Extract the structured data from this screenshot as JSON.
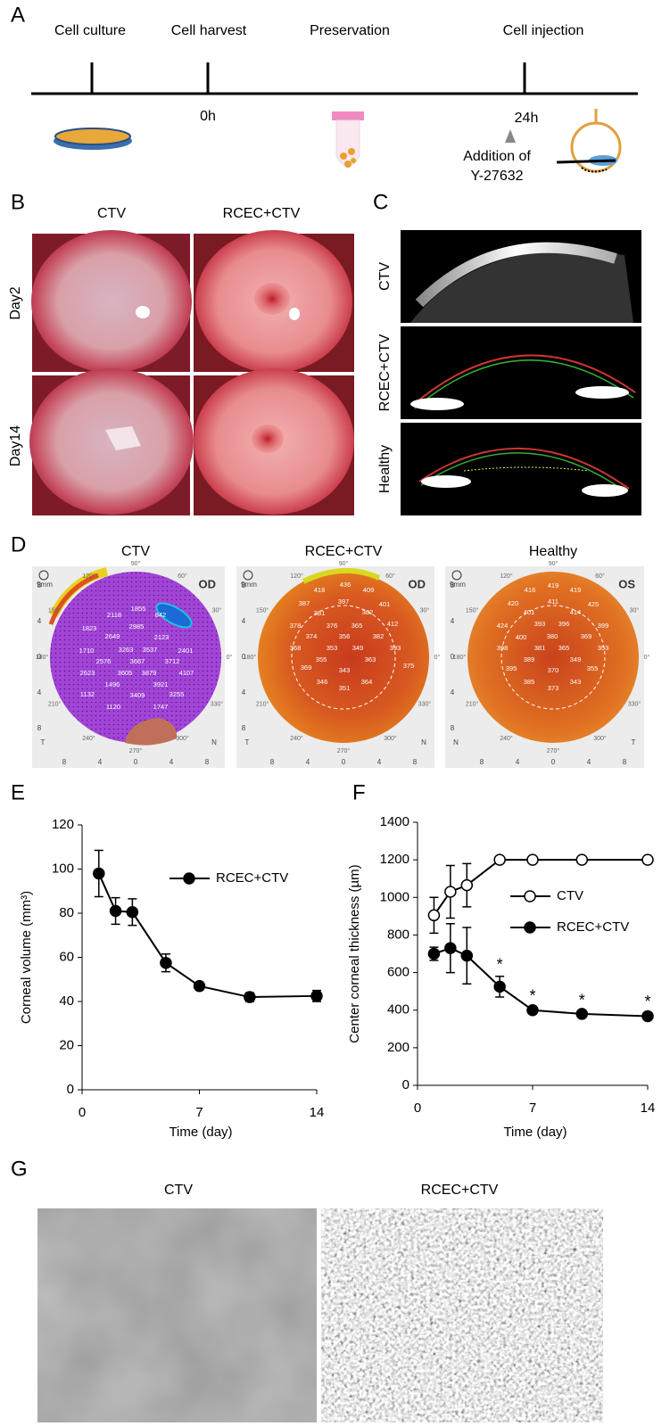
{
  "panel_labels": [
    "A",
    "B",
    "C",
    "D",
    "E",
    "F",
    "G"
  ],
  "timeline": {
    "steps": [
      "Cell culture",
      "Cell harvest",
      "Preservation",
      "Cell injection"
    ],
    "time_start": "0h",
    "time_end": "24h",
    "note": [
      "Addition of",
      "Y-27632"
    ]
  },
  "photos": {
    "columns": [
      "CTV",
      "RCEC+CTV"
    ],
    "rows": [
      "Day2",
      "Day14"
    ]
  },
  "oct": {
    "rows": [
      "CTV",
      "RCEC+CTV",
      "Healthy"
    ]
  },
  "maps": {
    "scale": "9mm",
    "ticks": [
      "8",
      "4",
      "0",
      "4",
      "8"
    ],
    "degrees": [
      "90°",
      "60°",
      "30°",
      "0°",
      "330°",
      "300°",
      "270°",
      "240°",
      "210°",
      "180°",
      "150°",
      "120°"
    ],
    "panels": [
      {
        "title": "CTV",
        "eye": "OD",
        "left": "T",
        "right": "N",
        "values": [
          1855,
          842,
          2118,
          2985,
          1823,
          2649,
          2123,
          1710,
          3263,
          3537,
          2401,
          2576,
          3667,
          3712,
          2623,
          3605,
          3879,
          4107,
          1496,
          3921,
          1132,
          3409,
          3255,
          1120,
          1747
        ]
      },
      {
        "title": "RCEC+CTV",
        "eye": "OD",
        "left": "T",
        "right": "N",
        "values": [
          436,
          418,
          409,
          387,
          397,
          401,
          381,
          382,
          378,
          376,
          365,
          412,
          374,
          356,
          382,
          393,
          368,
          353,
          349,
          369,
          355,
          343,
          363,
          375,
          346,
          351,
          364
        ]
      },
      {
        "title": "Healthy",
        "eye": "OS",
        "left": "N",
        "right": "T",
        "values": [
          419,
          416,
          419,
          420,
          411,
          425,
          401,
          414,
          424,
          393,
          396,
          399,
          400,
          380,
          369,
          353,
          398,
          381,
          365,
          389,
          349,
          355,
          395,
          370,
          385,
          343,
          373
        ]
      }
    ]
  },
  "chart_data": [
    {
      "type": "line",
      "ylabel": "Corneal volume (mm³)",
      "xlabel": "Time (day)",
      "x": [
        1,
        2,
        3,
        5,
        7,
        10,
        14
      ],
      "xlim": [
        0,
        14
      ],
      "xticks": [
        0,
        7,
        14
      ],
      "ylim": [
        0,
        120
      ],
      "yticks": [
        0,
        20,
        40,
        60,
        80,
        100,
        120
      ],
      "series": [
        {
          "name": "RCEC+CTV",
          "color": "#000000",
          "marker_fill": "#000000",
          "values": [
            98,
            81,
            80.5,
            57.5,
            47,
            42,
            42.5
          ],
          "errors": [
            10.5,
            6,
            6,
            4,
            1.5,
            2,
            2.5
          ]
        }
      ]
    },
    {
      "type": "line",
      "ylabel": "Center corneal thickness (µm)",
      "xlabel": "Time (day)",
      "x": [
        1,
        2,
        3,
        5,
        7,
        10,
        14
      ],
      "xlim": [
        0,
        14
      ],
      "xticks": [
        0,
        7,
        14
      ],
      "ylim": [
        0,
        1400
      ],
      "yticks": [
        0,
        200,
        400,
        600,
        800,
        1000,
        1200,
        1400
      ],
      "series": [
        {
          "name": "CTV",
          "color": "#000000",
          "marker_fill": "#ffffff",
          "values": [
            905,
            1030,
            1065,
            1200,
            1200,
            1200,
            1200
          ],
          "errors": [
            95,
            140,
            115,
            0,
            0,
            0,
            0
          ]
        },
        {
          "name": "RCEC+CTV",
          "color": "#000000",
          "marker_fill": "#000000",
          "values": [
            700,
            730,
            690,
            525,
            400,
            380,
            368
          ],
          "errors": [
            35,
            130,
            150,
            55,
            15,
            10,
            15
          ]
        }
      ],
      "significance_x": [
        5,
        7,
        10,
        14
      ],
      "significance_label": "*"
    }
  ],
  "confocal": {
    "columns": [
      "CTV",
      "RCEC+CTV"
    ]
  }
}
